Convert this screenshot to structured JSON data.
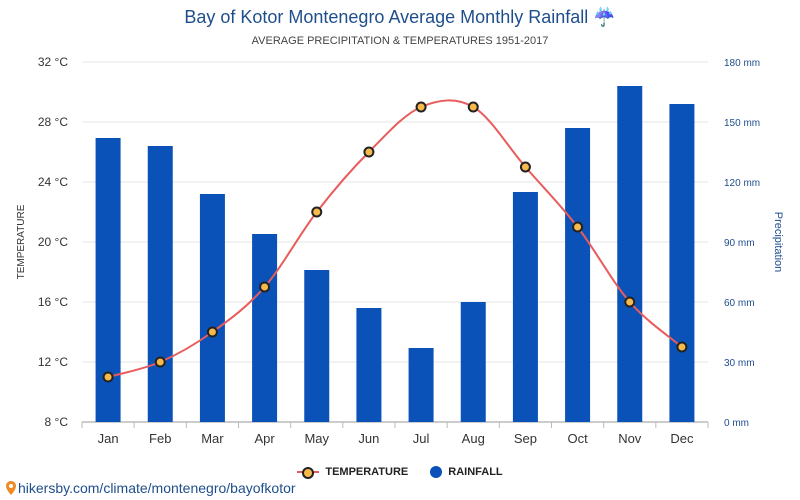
{
  "header": {
    "title": "Bay of Kotor Montenegro Average Monthly Rainfall ☔",
    "subtitle": "AVERAGE PRECIPITATION & TEMPERATURES 1951-2017"
  },
  "legend": {
    "temperature": "TEMPERATURE",
    "rainfall": "RAINFALL"
  },
  "source": {
    "text": "hikersby.com/climate/montenegro/bayofkotor"
  },
  "colors": {
    "bar": "#0a52b8",
    "line": "#e85c5c",
    "marker": "#f6b94c",
    "title": "#1f4e8c"
  },
  "chart_data": {
    "type": "bar",
    "categories": [
      "Jan",
      "Feb",
      "Mar",
      "Apr",
      "May",
      "Jun",
      "Jul",
      "Aug",
      "Sep",
      "Oct",
      "Nov",
      "Dec"
    ],
    "series": [
      {
        "name": "RAINFALL",
        "type": "bar",
        "axis": "right",
        "values": [
          142,
          138,
          114,
          94,
          76,
          57,
          37,
          60,
          115,
          147,
          168,
          159
        ]
      },
      {
        "name": "TEMPERATURE",
        "type": "line",
        "axis": "left",
        "values": [
          11,
          12,
          14,
          17,
          22,
          26,
          29,
          29,
          25,
          21,
          16,
          13
        ]
      }
    ],
    "ylabel": "TEMPERATURE",
    "y2label": "Precipitation",
    "ylim": [
      8,
      32
    ],
    "y2lim": [
      0,
      180
    ],
    "yticks": [
      "32 °C",
      "28 °C",
      "24 °C",
      "20 °C",
      "16 °C",
      "12 °C",
      "8 °C"
    ],
    "y2ticks": [
      "180 mm",
      "150 mm",
      "120 mm",
      "90 mm",
      "60 mm",
      "30 mm",
      "0 mm"
    ],
    "grid": true,
    "legend_position": "bottom"
  }
}
